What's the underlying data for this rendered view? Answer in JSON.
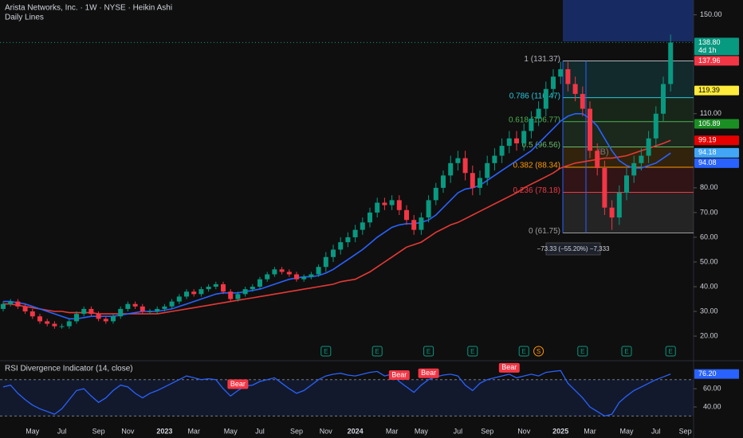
{
  "header": {
    "title": "Arista Networks, Inc. · 1W · NYSE · Heikin Ashi",
    "subtitle": "Daily Lines"
  },
  "chart_data": [
    {
      "type": "candlestick",
      "categories": [
        null,
        null,
        null,
        null,
        "May",
        null,
        null,
        null,
        "Jul",
        null,
        null,
        null,
        null,
        "Sep",
        null,
        null,
        null,
        "Nov",
        null,
        null,
        null,
        null,
        "2023",
        null,
        null,
        null,
        "Mar",
        null,
        null,
        null,
        null,
        "May",
        null,
        null,
        null,
        "Jul",
        null,
        null,
        null,
        null,
        "Sep",
        null,
        null,
        null,
        "Nov",
        null,
        null,
        null,
        "2024",
        null,
        null,
        null,
        null,
        "Mar",
        null,
        null,
        null,
        "May",
        null,
        null,
        null,
        null,
        "Jul",
        null,
        null,
        null,
        "Sep",
        null,
        null,
        null,
        null,
        "Nov",
        null,
        null,
        null,
        null,
        "2025",
        null,
        null,
        null,
        "Mar",
        null,
        null,
        null,
        null,
        "May",
        null,
        null,
        null,
        "Jul",
        null,
        null,
        null,
        "Sep"
      ],
      "open": [
        31,
        33,
        34,
        32,
        30,
        28,
        26,
        25,
        24,
        24,
        26,
        29,
        31,
        29,
        27,
        26,
        28,
        31,
        33,
        32,
        30,
        30,
        31,
        32,
        34,
        36,
        38,
        37,
        39,
        40,
        41,
        38,
        35,
        37,
        39,
        40,
        43,
        45,
        47,
        46,
        45,
        43,
        44,
        45,
        48,
        52,
        55,
        58,
        60,
        63,
        66,
        70,
        74,
        73,
        75,
        71,
        67,
        63,
        68,
        75,
        80,
        85,
        90,
        92,
        86,
        80,
        84,
        90,
        93,
        97,
        100,
        98,
        103,
        108,
        112,
        120,
        125,
        128,
        122,
        118,
        112,
        95,
        88,
        72,
        68,
        78,
        85,
        90,
        93,
        100,
        110,
        122,
        null,
        null
      ],
      "high": [
        34,
        35,
        35,
        33,
        31,
        29,
        27,
        26,
        25,
        27,
        30,
        32,
        32,
        30,
        28,
        29,
        32,
        34,
        34,
        33,
        31,
        32,
        33,
        35,
        37,
        39,
        39,
        40,
        41,
        42,
        42,
        39,
        38,
        40,
        41,
        44,
        46,
        48,
        48,
        47,
        46,
        45,
        46,
        49,
        54,
        57,
        60,
        62,
        65,
        68,
        72,
        76,
        76,
        77,
        77,
        73,
        69,
        70,
        77,
        82,
        87,
        93,
        95,
        95,
        89,
        87,
        93,
        96,
        100,
        103,
        103,
        106,
        111,
        115,
        123,
        128,
        131,
        131,
        125,
        121,
        115,
        98,
        91,
        75,
        81,
        88,
        93,
        96,
        103,
        113,
        125,
        142,
        null,
        null
      ],
      "low": [
        30,
        32,
        31,
        29,
        27,
        25,
        24,
        23,
        23,
        23,
        25,
        28,
        28,
        26,
        25,
        25,
        27,
        30,
        31,
        29,
        29,
        29,
        30,
        31,
        33,
        35,
        36,
        36,
        38,
        39,
        37,
        34,
        34,
        36,
        38,
        39,
        42,
        44,
        45,
        44,
        42,
        42,
        43,
        44,
        46,
        50,
        53,
        56,
        58,
        61,
        64,
        68,
        71,
        71,
        69,
        65,
        61,
        61,
        66,
        73,
        78,
        82,
        87,
        83,
        77,
        77,
        81,
        87,
        90,
        94,
        95,
        95,
        100,
        105,
        109,
        117,
        122,
        119,
        115,
        109,
        92,
        85,
        69,
        63,
        65,
        75,
        82,
        87,
        90,
        97,
        107,
        119,
        null,
        null
      ],
      "close": [
        33,
        34,
        32,
        30,
        28,
        26,
        25,
        24,
        24,
        26,
        29,
        31,
        29,
        27,
        26,
        28,
        31,
        33,
        32,
        30,
        30,
        31,
        32,
        34,
        36,
        38,
        37,
        39,
        40,
        41,
        38,
        35,
        37,
        39,
        40,
        43,
        45,
        47,
        46,
        45,
        43,
        44,
        45,
        48,
        52,
        55,
        58,
        60,
        63,
        66,
        70,
        74,
        73,
        75,
        71,
        67,
        63,
        68,
        75,
        80,
        85,
        90,
        92,
        86,
        80,
        84,
        90,
        93,
        97,
        100,
        98,
        103,
        108,
        112,
        120,
        125,
        128,
        122,
        118,
        112,
        95,
        88,
        72,
        68,
        78,
        85,
        90,
        93,
        100,
        110,
        122,
        138.8,
        null,
        null
      ],
      "up_color": "#089981",
      "down_color": "#f23645",
      "lines": [
        {
          "color": "#e53935",
          "values": [
            33,
            33,
            32.5,
            32,
            31.5,
            31,
            30.5,
            30,
            30,
            29.5,
            29.5,
            29.5,
            29.5,
            29,
            29,
            29,
            29,
            29,
            29,
            29,
            29,
            29,
            29.5,
            30,
            30.5,
            31,
            31.5,
            32,
            32.5,
            33,
            33.5,
            34,
            34.5,
            35,
            35.5,
            36,
            36.5,
            37,
            37.5,
            38,
            38.5,
            39,
            39.5,
            40,
            40.5,
            41,
            42,
            42.5,
            43,
            44.5,
            46,
            48,
            50,
            52,
            54,
            56,
            57,
            58,
            60,
            62,
            63.5,
            65,
            66,
            67.5,
            69,
            70.5,
            72,
            73.5,
            75,
            76.5,
            78,
            80,
            81.5,
            83,
            84.5,
            86,
            88,
            89,
            90,
            90.5,
            91,
            91.5,
            92,
            92,
            92.5,
            93,
            94,
            95,
            96,
            97,
            98,
            99.19,
            null,
            null
          ]
        },
        {
          "color": "#2962ff",
          "values": [
            34,
            34,
            33.5,
            33,
            32,
            31,
            30,
            29,
            28,
            27,
            27,
            27.5,
            28,
            28,
            28,
            28,
            28.5,
            29,
            29.5,
            30,
            30,
            30,
            30.5,
            31,
            32,
            33,
            34,
            35,
            36,
            37,
            37.5,
            37.5,
            37.5,
            38,
            38.5,
            39,
            40,
            41,
            42,
            43,
            43.5,
            44,
            44,
            44.5,
            45.5,
            47,
            49,
            51,
            53,
            55,
            57.5,
            60,
            62,
            64,
            65,
            65.5,
            65.5,
            66,
            67,
            69,
            72,
            75,
            78,
            79.5,
            80,
            81,
            83,
            85,
            87,
            89,
            91,
            93,
            95,
            98,
            101,
            104,
            107,
            109,
            110,
            110,
            108,
            105,
            100,
            95,
            91,
            89,
            88,
            88,
            89,
            90,
            92,
            94.08,
            null,
            null
          ]
        }
      ],
      "event_labels": [
        null,
        null,
        null,
        null,
        null,
        null,
        null,
        null,
        null,
        null,
        null,
        null,
        null,
        null,
        null,
        null,
        null,
        null,
        null,
        null,
        null,
        null,
        null,
        null,
        null,
        null,
        null,
        null,
        null,
        null,
        null,
        null,
        null,
        null,
        null,
        null,
        null,
        null,
        null,
        null,
        null,
        null,
        null,
        null,
        "E",
        null,
        null,
        null,
        null,
        null,
        null,
        "E",
        null,
        null,
        null,
        null,
        null,
        null,
        "E",
        null,
        null,
        null,
        null,
        null,
        "E",
        null,
        null,
        null,
        null,
        null,
        null,
        "E",
        null,
        "S",
        null,
        null,
        null,
        null,
        null,
        "E",
        null,
        null,
        null,
        null,
        null,
        "E",
        null,
        null,
        null,
        null,
        null,
        "E",
        null,
        null
      ],
      "fib_levels": [
        {
          "label": "1 (131.37)",
          "value": 131.37,
          "color": "#b2b5be"
        },
        {
          "label": "0.786 (116.47)",
          "value": 116.47,
          "color": "#26c6da"
        },
        {
          "label": "0.618 (106.77)",
          "value": 106.77,
          "color": "#4caf50"
        },
        {
          "label": "0.5 (96.56)",
          "value": 96.56,
          "color": "#66bb6a"
        },
        {
          "label": "0.382 (88.34)",
          "value": 88.34,
          "color": "#ff9800"
        },
        {
          "label": "0.236 (78.18)",
          "value": 78.18,
          "color": "#f23645"
        },
        {
          "label": "0 (61.75)",
          "value": 61.75,
          "color": "#9e9e9e"
        }
      ],
      "measure_label": "−73.33 (−55.20%) −7,333",
      "annotation": "(B)",
      "price_labels": [
        {
          "value": 138.8,
          "label": "138.80",
          "color": "#089981"
        },
        {
          "value": 137.96,
          "label": "137.96",
          "color": "#f23645"
        },
        {
          "value": 119.39,
          "label": "119.39",
          "color": "#ffeb3b"
        },
        {
          "value": 105.89,
          "label": "105.89",
          "color": "#1b8f24"
        },
        {
          "value": 99.19,
          "label": "99.19",
          "color": "#e60000"
        },
        {
          "value": 94.18,
          "label": "94.18",
          "color": "#42a5f5"
        },
        {
          "value": 94.08,
          "label": "94.08",
          "color": "#2962ff"
        }
      ],
      "countdown": "4d 1h",
      "ylim": [
        11,
        156
      ],
      "yticks": [
        {
          "value": 20,
          "label": "20.00"
        },
        {
          "value": 30,
          "label": "30.00"
        },
        {
          "value": 40,
          "label": "40.00"
        },
        {
          "value": 50,
          "label": "50.00"
        },
        {
          "value": 60,
          "label": "60.00"
        },
        {
          "value": 70,
          "label": "70.00"
        },
        {
          "value": 80,
          "label": "80.00"
        },
        {
          "value": 110,
          "label": "110.00"
        },
        {
          "value": 150,
          "label": "150.00"
        }
      ]
    },
    {
      "type": "line",
      "title": "RSI Divergence Indicator (14, close)",
      "color": "#2962ff",
      "values": [
        62,
        64,
        55,
        48,
        42,
        38,
        35,
        32,
        38,
        48,
        58,
        60,
        52,
        45,
        50,
        58,
        64,
        62,
        55,
        50,
        55,
        58,
        62,
        66,
        70,
        74,
        72,
        70,
        71,
        70,
        60,
        52,
        58,
        63,
        64,
        68,
        70,
        72,
        66,
        60,
        55,
        58,
        64,
        70,
        74,
        76,
        77,
        75,
        74,
        76,
        78,
        79,
        74,
        76,
        68,
        62,
        56,
        64,
        70,
        73,
        75,
        76,
        74,
        64,
        58,
        66,
        70,
        72,
        74,
        76,
        72,
        74,
        76,
        74,
        78,
        79,
        80,
        66,
        58,
        50,
        40,
        35,
        30,
        32,
        45,
        52,
        58,
        62,
        66,
        70,
        73,
        76.2,
        null,
        null
      ],
      "signal_labels": [
        null,
        null,
        null,
        null,
        null,
        null,
        null,
        null,
        null,
        null,
        null,
        null,
        null,
        null,
        null,
        null,
        null,
        null,
        null,
        null,
        null,
        null,
        null,
        null,
        null,
        null,
        null,
        null,
        null,
        null,
        null,
        null,
        "Bear",
        null,
        null,
        null,
        null,
        null,
        null,
        null,
        null,
        null,
        null,
        null,
        null,
        null,
        null,
        null,
        null,
        null,
        null,
        null,
        null,
        null,
        "Bear",
        null,
        null,
        null,
        "Bear",
        null,
        null,
        null,
        null,
        null,
        null,
        null,
        null,
        null,
        null,
        "Bear",
        null,
        null,
        null,
        null,
        null,
        null,
        null,
        null,
        null,
        null,
        null,
        null,
        null,
        null,
        null,
        null,
        null,
        null,
        null,
        null,
        null,
        null,
        null,
        null
      ],
      "band": [
        30,
        70
      ],
      "current": {
        "value": 76.2,
        "label": "76.20"
      },
      "ylim": [
        19,
        89
      ],
      "yticks": [
        {
          "value": 40,
          "label": "40.00"
        },
        {
          "value": 60,
          "label": "60.00"
        }
      ]
    }
  ]
}
